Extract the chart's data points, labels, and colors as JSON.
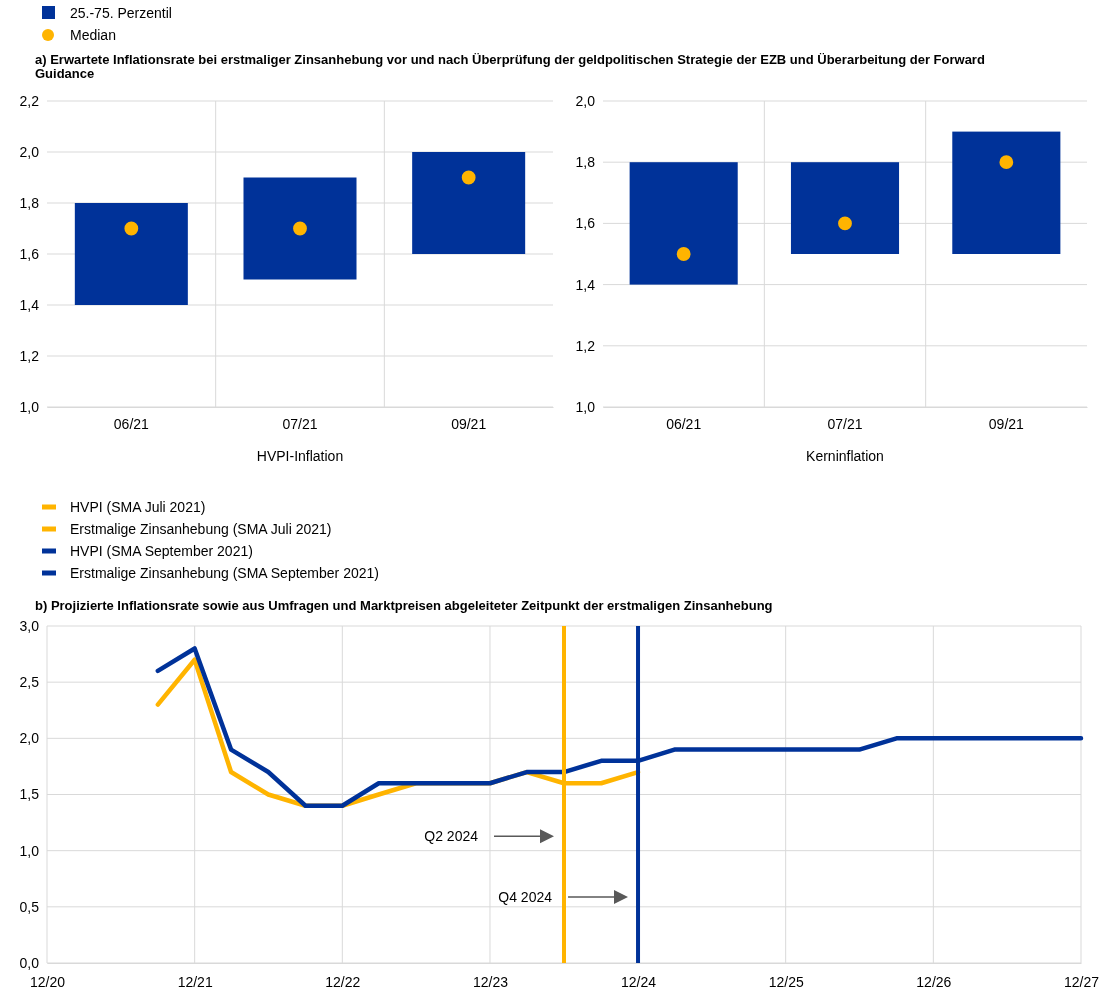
{
  "chart_data": [
    {
      "type": "bar",
      "title": "a) Erwartete Inflationsrate bei erstmaliger Zinsanhebung vor und nach Überprüfung der geldpolitischen Strategie der EZB und Überarbeitung der Forward Guidance",
      "xlabel": "HVPI-Inflation",
      "categories": [
        "06/21",
        "07/21",
        "09/21"
      ],
      "series": [
        {
          "name": "25.-75. Perzentil",
          "color": "#003299",
          "base": [
            1.4,
            1.5,
            1.6
          ],
          "values": [
            0.4,
            0.4,
            0.4
          ]
        },
        {
          "name": "Median",
          "type": "scatter",
          "color": "#ffb400",
          "values": [
            1.7,
            1.7,
            1.9
          ]
        }
      ],
      "ylim": [
        1.0,
        2.2
      ],
      "yticks": [
        {
          "value": 1.0,
          "label": "1,0"
        },
        {
          "value": 1.2,
          "label": "1,2"
        },
        {
          "value": 1.4,
          "label": "1,4"
        },
        {
          "value": 1.6,
          "label": "1,6"
        },
        {
          "value": 1.8,
          "label": "1,8"
        },
        {
          "value": 2.0,
          "label": "2,0"
        },
        {
          "value": 2.2,
          "label": "2,2"
        }
      ],
      "grid": true,
      "legend": "top left",
      "marker": "circle"
    },
    {
      "type": "bar",
      "xlabel": "Kerninflation",
      "categories": [
        "06/21",
        "07/21",
        "09/21"
      ],
      "series": [
        {
          "color": "#003299",
          "base": [
            1.4,
            1.5,
            1.5
          ],
          "values": [
            0.4,
            0.3,
            0.4
          ]
        },
        {
          "type": "scatter",
          "color": "#ffb400",
          "values": [
            1.5,
            1.6,
            1.8
          ]
        }
      ],
      "ylim": [
        1.0,
        2.0
      ],
      "yticks": [
        {
          "value": 1.0,
          "label": "1,0"
        },
        {
          "value": 1.2,
          "label": "1,2"
        },
        {
          "value": 1.4,
          "label": "1,4"
        },
        {
          "value": 1.6,
          "label": "1,6"
        },
        {
          "value": 1.8,
          "label": "1,8"
        },
        {
          "value": 2.0,
          "label": "2,0"
        }
      ],
      "grid": true,
      "marker": "circle"
    },
    {
      "type": "line",
      "title": "b) Projizierte Inflationsrate sowie aus Umfragen und Marktpreisen abgeleiteter Zeitpunkt der erstmaligen Zinsanhebung",
      "series": [
        {
          "name": "HVPI (SMA Juli 2021)",
          "color": "#ffb400",
          "x": [
            "2021-09",
            "2021-12",
            "2022-03",
            "2022-06",
            "2022-09",
            "2022-12",
            "2023-03",
            "2023-06",
            "2023-09",
            "2023-12",
            "2024-03",
            "2024-06",
            "2024-09",
            "2024-12"
          ],
          "values": [
            2.3,
            2.7,
            1.7,
            1.5,
            1.4,
            1.4,
            1.5,
            1.6,
            1.6,
            1.6,
            1.7,
            1.6,
            1.6,
            1.7
          ]
        },
        {
          "name": "HVPI (SMA September 2021)",
          "color": "#003299",
          "x": [
            "2021-09",
            "2021-12",
            "2022-03",
            "2022-06",
            "2022-09",
            "2022-12",
            "2023-03",
            "2023-06",
            "2023-09",
            "2023-12",
            "2024-03",
            "2024-06",
            "2024-09",
            "2024-12",
            "2025-03",
            "2025-06",
            "2025-09",
            "2025-12",
            "2026-03",
            "2026-06",
            "2026-09",
            "2026-12",
            "2027-03",
            "2027-06",
            "2027-09",
            "2027-12"
          ],
          "values": [
            2.6,
            2.8,
            1.9,
            1.7,
            1.4,
            1.4,
            1.6,
            1.6,
            1.6,
            1.6,
            1.7,
            1.7,
            1.8,
            1.8,
            1.9,
            1.9,
            1.9,
            1.9,
            1.9,
            1.9,
            2.0,
            2.0,
            2.0,
            2.0,
            2.0,
            2.0
          ]
        }
      ],
      "ref_lines": [
        {
          "axis": "x",
          "value": "2024-06",
          "label": "Erstmalige Zinsanhebung (SMA Juli 2021)",
          "color": "#ffb400"
        },
        {
          "axis": "x",
          "value": "2024-12",
          "label": "Erstmalige Zinsanhebung (SMA September 2021)",
          "color": "#003299"
        }
      ],
      "annotations": [
        "Q2 2024",
        "Q4 2024"
      ],
      "xlim": [
        "2020-12",
        "2027-12"
      ],
      "xticks": [
        {
          "value": "2020-12",
          "label": "12/20"
        },
        {
          "value": "2021-12",
          "label": "12/21"
        },
        {
          "value": "2022-12",
          "label": "12/22"
        },
        {
          "value": "2023-12",
          "label": "12/23"
        },
        {
          "value": "2024-12",
          "label": "12/24"
        },
        {
          "value": "2025-12",
          "label": "12/25"
        },
        {
          "value": "2026-12",
          "label": "12/26"
        },
        {
          "value": "2027-12",
          "label": "12/27"
        }
      ],
      "ylim": [
        0,
        3.0
      ],
      "yticks": [
        {
          "value": 0,
          "label": "0,0"
        },
        {
          "value": 0.5,
          "label": "0,5"
        },
        {
          "value": 1.0,
          "label": "1,0"
        },
        {
          "value": 1.5,
          "label": "1,5"
        },
        {
          "value": 2.0,
          "label": "2,0"
        },
        {
          "value": 2.5,
          "label": "2,5"
        },
        {
          "value": 3.0,
          "label": "3,0"
        }
      ],
      "grid": true,
      "legend": "top left"
    }
  ]
}
